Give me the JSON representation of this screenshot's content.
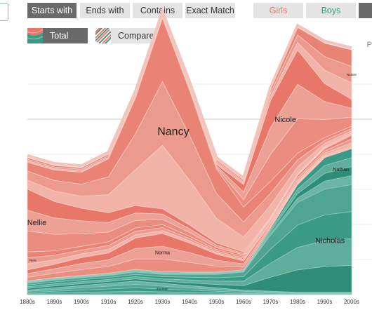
{
  "filters": {
    "starts_with": "Starts with",
    "ends_with": "Ends with",
    "contains": "Contains",
    "exact_match": "Exact Match"
  },
  "gender": {
    "girls": "Girls",
    "boys": "Boys",
    "girls_color": "#e8776a",
    "boys_color": "#3a9a86"
  },
  "legend": {
    "total": "Total",
    "compare": "Compare"
  },
  "edge_letter": "P",
  "chart_data": {
    "type": "area",
    "stacked": true,
    "x": [
      "1880s",
      "1890s",
      "1900s",
      "1910s",
      "1920s",
      "1930s",
      "1940s",
      "1950s",
      "1960s",
      "1970s",
      "1980s",
      "1990s",
      "2000s"
    ],
    "grid": true,
    "series": [
      {
        "name": "Norman",
        "group": "boys",
        "values": [
          0.02,
          0.03,
          0.04,
          0.05,
          0.06,
          0.05,
          0.04,
          0.03,
          0.02,
          0.015,
          0.01,
          0.01,
          0.01
        ]
      },
      {
        "name": "Nicholas",
        "group": "boys",
        "values": [
          0.03,
          0.035,
          0.035,
          0.035,
          0.04,
          0.04,
          0.05,
          0.06,
          0.08,
          0.25,
          0.4,
          0.46,
          0.48
        ]
      },
      {
        "name": "Nathan",
        "group": "boys",
        "values": [
          0.01,
          0.01,
          0.01,
          0.01,
          0.012,
          0.012,
          0.01,
          0.01,
          0.01,
          0.03,
          0.08,
          0.14,
          0.16
        ]
      },
      {
        "name": "Norma",
        "group": "girls",
        "values": [
          0.05,
          0.06,
          0.08,
          0.09,
          0.14,
          0.17,
          0.13,
          0.08,
          0.04,
          0.02,
          0.01,
          0.01,
          0.01
        ]
      },
      {
        "name": "Nora",
        "group": "girls",
        "values": [
          0.08,
          0.06,
          0.05,
          0.05,
          0.045,
          0.04,
          0.03,
          0.02,
          0.02,
          0.02,
          0.03,
          0.03,
          0.05
        ]
      },
      {
        "name": "Nellie",
        "group": "girls",
        "values": [
          0.28,
          0.22,
          0.17,
          0.13,
          0.1,
          0.07,
          0.05,
          0.03,
          0.02,
          0.01,
          0.01,
          0.01,
          0.01
        ]
      },
      {
        "name": "Nancy",
        "group": "girls",
        "values": [
          0.12,
          0.14,
          0.16,
          0.24,
          0.48,
          0.85,
          0.6,
          0.33,
          0.2,
          0.16,
          0.09,
          0.04,
          0.03
        ]
      },
      {
        "name": "Nicole",
        "group": "girls",
        "values": [
          0.0,
          0.0,
          0.0,
          0.0,
          0.0,
          0.0,
          0.01,
          0.02,
          0.1,
          0.36,
          0.46,
          0.24,
          0.12
        ]
      },
      {
        "name": "Natalie",
        "group": "girls",
        "values": [
          0.02,
          0.02,
          0.02,
          0.02,
          0.02,
          0.02,
          0.02,
          0.02,
          0.02,
          0.05,
          0.1,
          0.18,
          0.22
        ]
      }
    ],
    "visible_labels": [
      {
        "name": "Nancy",
        "size": "large",
        "col": 5.4,
        "series": "Nancy"
      },
      {
        "name": "Nicole",
        "size": "medium",
        "col": 9.55,
        "series": "Nicole"
      },
      {
        "name": "Nicholas",
        "size": "medium",
        "col": 11.2,
        "series": "Nicholas"
      },
      {
        "name": "Nellie",
        "size": "medium",
        "col": 0.35,
        "series": "Nellie"
      },
      {
        "name": "Norma",
        "size": "small",
        "col": 5.0,
        "series": "Norma"
      },
      {
        "name": "Nathan",
        "size": "small",
        "col": 11.6,
        "series": "Nathan"
      },
      {
        "name": "Natalie",
        "size": "tiny",
        "col": 12.0,
        "series": "Natalie"
      },
      {
        "name": "Nora",
        "size": "tiny",
        "col": 0.2,
        "series": "Nora"
      },
      {
        "name": "Norman",
        "size": "tiny",
        "col": 5.0,
        "series": "Norman"
      }
    ]
  }
}
